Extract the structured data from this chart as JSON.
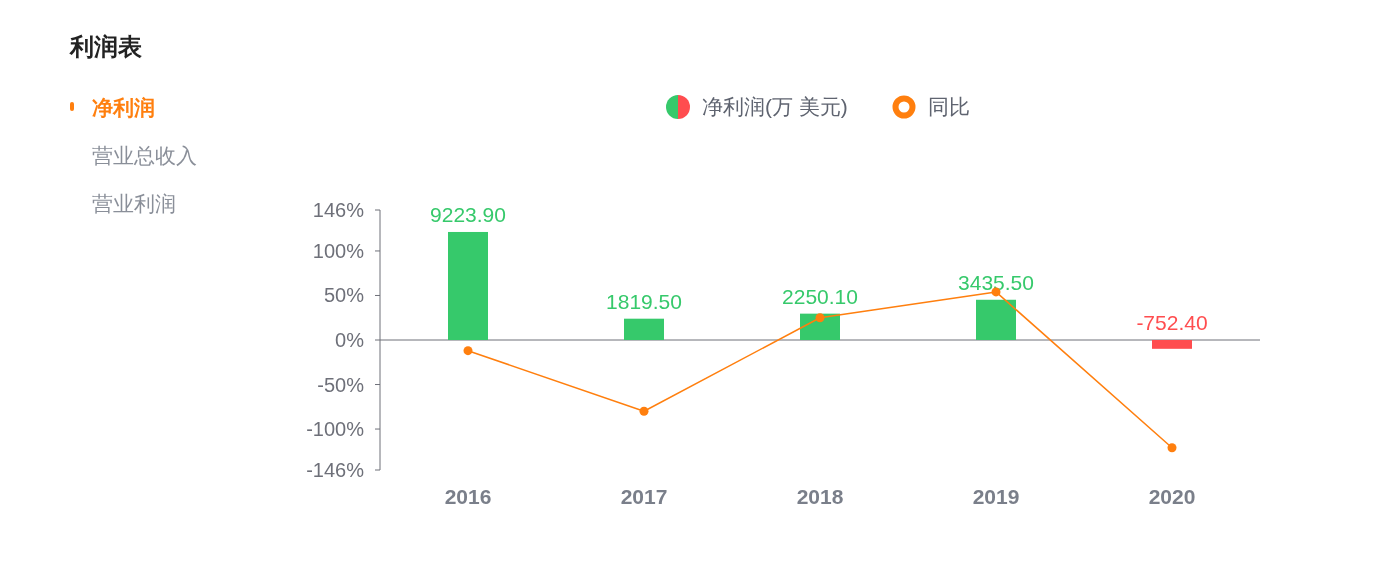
{
  "chart_data": {
    "type": "bar",
    "title": "利润表",
    "annotations": [
      "净利润",
      "营业总收入",
      "营业利润"
    ],
    "categories": [
      "2016",
      "2017",
      "2018",
      "2019",
      "2020"
    ],
    "series": [
      {
        "name": "净利润(万 美元)",
        "axis": "y2",
        "colors": [
          "#36c96b",
          "#36c96b",
          "#36c96b",
          "#36c96b",
          "#ff4d4f"
        ],
        "values": [
          9223.9,
          1819.5,
          2250.1,
          3435.5,
          -752.4
        ],
        "value_labels": [
          "9223.90",
          "1819.50",
          "2250.10",
          "3435.50",
          "-752.40"
        ]
      },
      {
        "name": "同比",
        "type": "line",
        "color": "#ff7f0e",
        "marker": "circle",
        "values": [
          -12,
          -80,
          25,
          54,
          -121
        ]
      }
    ],
    "ylim": [
      -146,
      146
    ],
    "yticks": [
      {
        "value": 146,
        "label": "146%"
      },
      {
        "value": 100,
        "label": "100%"
      },
      {
        "value": 50,
        "label": "50%"
      },
      {
        "value": 0,
        "label": "0%"
      },
      {
        "value": -50,
        "label": "-50%"
      },
      {
        "value": -100,
        "label": "-100%"
      },
      {
        "value": -146,
        "label": "-146%"
      }
    ],
    "y2lim": [
      -11100,
      11100
    ],
    "legend": "top"
  }
}
